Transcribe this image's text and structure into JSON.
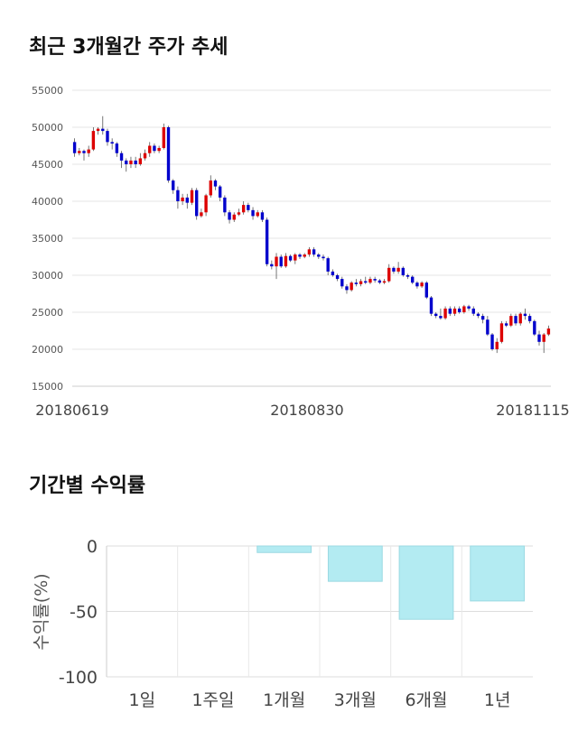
{
  "sections": {
    "price_trend_title": "최근 3개월간 주가 추세",
    "returns_title": "기간별 수익률"
  },
  "chart_data": [
    {
      "type": "candlestick",
      "title": "최근 3개월간 주가 추세",
      "ylim": [
        15000,
        55000
      ],
      "yticks": [
        "15000",
        "20000",
        "25000",
        "30000",
        "35000",
        "40000",
        "45000",
        "50000",
        "55000"
      ],
      "xtick_labels": [
        "20180619",
        "20180830",
        "20181115"
      ],
      "up_color": "#dd0000",
      "down_color": "#0000cc",
      "grid": true,
      "candles": [
        [
          48000,
          46500,
          48500,
          46000
        ],
        [
          46500,
          46800,
          47200,
          46200
        ],
        [
          46800,
          46500,
          47000,
          45500
        ],
        [
          46500,
          47000,
          47500,
          46000
        ],
        [
          47000,
          49500,
          50000,
          46800
        ],
        [
          49500,
          49800,
          50000,
          49000
        ],
        [
          49800,
          49500,
          51500,
          49000
        ],
        [
          49500,
          48000,
          49800,
          47500
        ],
        [
          48000,
          47800,
          48500,
          47000
        ],
        [
          47800,
          46500,
          48000,
          46000
        ],
        [
          46500,
          45500,
          46800,
          44500
        ],
        [
          45500,
          45000,
          45800,
          44000
        ],
        [
          45000,
          45500,
          46000,
          44500
        ],
        [
          45500,
          45000,
          46000,
          44500
        ],
        [
          45000,
          45800,
          46500,
          44800
        ],
        [
          45800,
          46500,
          47000,
          45500
        ],
        [
          46500,
          47500,
          48000,
          46000
        ],
        [
          47500,
          46800,
          47800,
          46500
        ],
        [
          46800,
          47200,
          47500,
          46500
        ],
        [
          47200,
          50000,
          50500,
          47000
        ],
        [
          50000,
          42800,
          50200,
          42500
        ],
        [
          42800,
          41500,
          43000,
          41000
        ],
        [
          41500,
          40000,
          42000,
          39000
        ],
        [
          40000,
          40500,
          41000,
          39500
        ],
        [
          40500,
          39800,
          41000,
          39000
        ],
        [
          39800,
          41500,
          41800,
          39500
        ],
        [
          41500,
          38000,
          41800,
          37500
        ],
        [
          38000,
          38500,
          39000,
          37800
        ],
        [
          38500,
          40800,
          41000,
          38000
        ],
        [
          40800,
          42800,
          43500,
          40500
        ],
        [
          42800,
          42000,
          43000,
          41500
        ],
        [
          42000,
          40500,
          42200,
          40000
        ],
        [
          40500,
          38500,
          40800,
          38000
        ],
        [
          38500,
          37500,
          38800,
          37000
        ],
        [
          37500,
          38200,
          38500,
          37200
        ],
        [
          38200,
          38500,
          39000,
          38000
        ],
        [
          38500,
          39500,
          40000,
          38200
        ],
        [
          39500,
          38800,
          39800,
          38500
        ],
        [
          38800,
          38000,
          39200,
          37500
        ],
        [
          38000,
          38500,
          38800,
          37800
        ],
        [
          38500,
          37500,
          38800,
          37200
        ],
        [
          37500,
          31500,
          37800,
          31200
        ],
        [
          31500,
          31200,
          32000,
          30800
        ],
        [
          31200,
          32500,
          33000,
          29500
        ],
        [
          32500,
          31200,
          32800,
          31000
        ],
        [
          31200,
          32600,
          33000,
          31000
        ],
        [
          32600,
          32000,
          32800,
          31800
        ],
        [
          32000,
          32800,
          33000,
          31500
        ],
        [
          32800,
          32500,
          33000,
          32200
        ],
        [
          32500,
          32800,
          33000,
          32300
        ],
        [
          32800,
          33500,
          33800,
          32500
        ],
        [
          33500,
          32800,
          33800,
          32500
        ],
        [
          32800,
          32500,
          33000,
          32200
        ],
        [
          32500,
          32300,
          32800,
          32000
        ],
        [
          32300,
          30500,
          32500,
          30000
        ],
        [
          30500,
          30000,
          30800,
          29800
        ],
        [
          30000,
          29500,
          30200,
          29200
        ],
        [
          29500,
          28500,
          29800,
          28200
        ],
        [
          28500,
          28000,
          28800,
          27500
        ],
        [
          28000,
          29000,
          29200,
          27800
        ],
        [
          29000,
          28800,
          29500,
          28500
        ],
        [
          28800,
          29200,
          29500,
          28500
        ],
        [
          29200,
          29000,
          29800,
          28800
        ],
        [
          29000,
          29500,
          29800,
          28800
        ],
        [
          29500,
          29300,
          29800,
          29000
        ],
        [
          29300,
          29000,
          29500,
          28800
        ],
        [
          29000,
          29200,
          29500,
          28800
        ],
        [
          29200,
          31000,
          31500,
          29000
        ],
        [
          31000,
          30500,
          31200,
          30200
        ],
        [
          30500,
          31000,
          31800,
          30200
        ],
        [
          31000,
          30000,
          31200,
          29800
        ],
        [
          30000,
          29800,
          30200,
          29500
        ],
        [
          29800,
          29000,
          30000,
          28800
        ],
        [
          29000,
          28500,
          29200,
          28200
        ],
        [
          28500,
          29000,
          29200,
          28300
        ],
        [
          29000,
          27000,
          29200,
          26800
        ],
        [
          27000,
          24800,
          27200,
          24500
        ],
        [
          24800,
          24500,
          25000,
          24200
        ],
        [
          24500,
          24200,
          25500,
          24000
        ],
        [
          24200,
          25500,
          25800,
          24000
        ],
        [
          25500,
          24800,
          25800,
          24500
        ],
        [
          24800,
          25500,
          25800,
          24500
        ],
        [
          25500,
          25000,
          25800,
          24800
        ],
        [
          25000,
          25800,
          26000,
          24800
        ],
        [
          25800,
          25500,
          26000,
          25200
        ],
        [
          25500,
          24800,
          25800,
          24500
        ],
        [
          24800,
          24500,
          25000,
          24200
        ],
        [
          24500,
          24000,
          24800,
          23500
        ],
        [
          24000,
          22000,
          24500,
          21800
        ],
        [
          22000,
          20000,
          22200,
          19800
        ],
        [
          20000,
          21000,
          21500,
          19500
        ],
        [
          21000,
          23500,
          23800,
          20800
        ],
        [
          23500,
          23200,
          23800,
          23000
        ],
        [
          23200,
          24500,
          24800,
          23000
        ],
        [
          24500,
          23500,
          24800,
          23200
        ],
        [
          23500,
          24800,
          25000,
          23200
        ],
        [
          24800,
          24500,
          25500,
          24000
        ],
        [
          24500,
          23800,
          24800,
          23500
        ],
        [
          23800,
          22000,
          24000,
          21800
        ],
        [
          22000,
          21000,
          22500,
          20500
        ],
        [
          21000,
          22000,
          22200,
          19500
        ],
        [
          22000,
          22800,
          23200,
          21800
        ]
      ]
    },
    {
      "type": "bar",
      "categories": [
        "1일",
        "1주일",
        "1개월",
        "3개월",
        "6개월",
        "1년"
      ],
      "values": [
        0,
        0,
        -5,
        -27,
        -56,
        -42
      ],
      "ylabel": "수익률(%)",
      "ylim": [
        -100,
        0
      ],
      "yticks": [
        "0",
        "-50",
        "-100"
      ],
      "bar_color": "#b3ebf2",
      "bar_edge": "#9bd9e2",
      "grid": true
    }
  ]
}
